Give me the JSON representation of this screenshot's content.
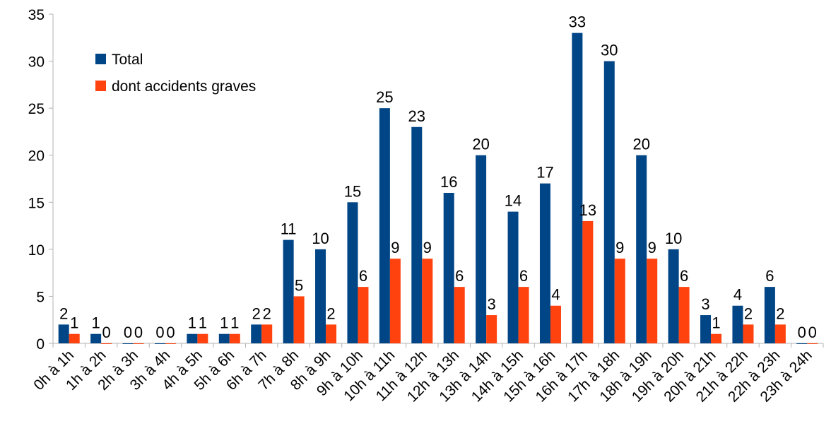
{
  "chart_data": {
    "type": "bar",
    "categories": [
      "0h à 1h",
      "1h à 2h",
      "2h à 3h",
      "3h à 4h",
      "4h à 5h",
      "5h à 6h",
      "6h à 7h",
      "7h à 8h",
      "8h à 9h",
      "9h à 10h",
      "10h à 11h",
      "11h à 12h",
      "12h à 13h",
      "13h à 14h",
      "14h à 15h",
      "15h à 16h",
      "16h à 17h",
      "17h à 18h",
      "18h à 19h",
      "19h à 20h",
      "20h à 21h",
      "21h à 22h",
      "22h à 23h",
      "23h à 24h"
    ],
    "series": [
      {
        "name": "Total",
        "color": "#004586",
        "values": [
          2,
          1,
          0,
          0,
          1,
          1,
          2,
          11,
          10,
          15,
          25,
          23,
          16,
          20,
          14,
          17,
          33,
          30,
          20,
          10,
          3,
          4,
          6,
          0
        ]
      },
      {
        "name": "dont accidents graves",
        "color": "#ff420e",
        "values": [
          1,
          0,
          0,
          0,
          1,
          1,
          2,
          5,
          2,
          6,
          9,
          9,
          6,
          3,
          6,
          4,
          13,
          9,
          9,
          6,
          1,
          2,
          2,
          0
        ]
      }
    ],
    "ylim": [
      0,
      35
    ],
    "yticks": [
      0,
      5,
      10,
      15,
      20,
      25,
      30,
      35
    ],
    "grid": false,
    "legend": "upper left"
  }
}
